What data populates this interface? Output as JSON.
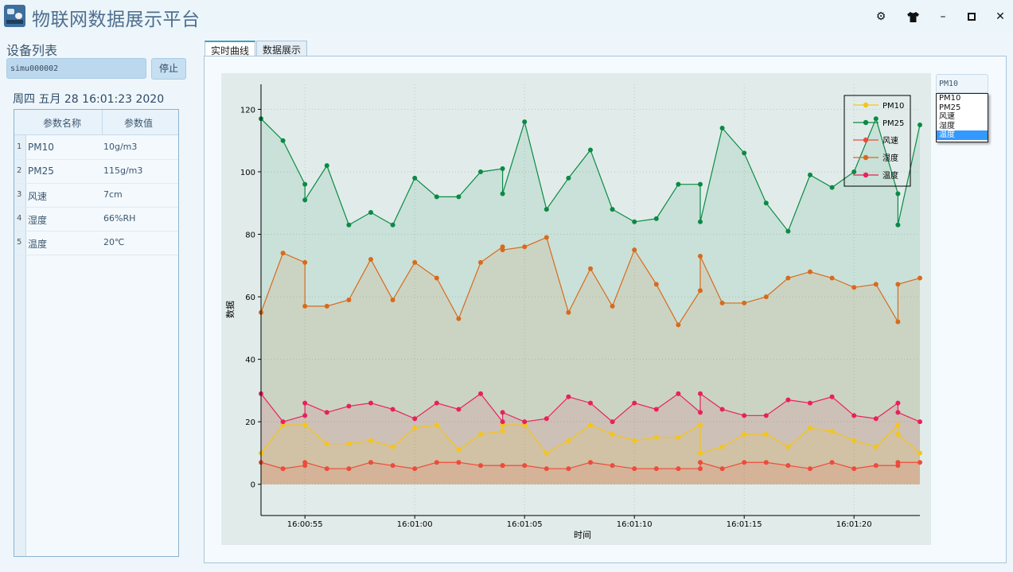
{
  "window": {
    "title": "物联网数据展示平台",
    "logo_icon": "app-logo-icon"
  },
  "titlebar_buttons": [
    {
      "icon": "gear-icon",
      "glyph": "⚙"
    },
    {
      "icon": "shirt-icon",
      "glyph": "👕"
    },
    {
      "icon": "minimize-icon",
      "glyph": "–"
    },
    {
      "icon": "maximize-icon",
      "glyph": "□"
    },
    {
      "icon": "close-icon",
      "glyph": "✕"
    }
  ],
  "sidebar": {
    "section_label": "设备列表",
    "device_id": "simu000002",
    "stop_label": "停止",
    "datetime": "周四 五月 28 16:01:23 2020",
    "table": {
      "headers": [
        "参数名称",
        "参数值"
      ],
      "rows": [
        {
          "num": "1",
          "name": "PM10",
          "value": "10g/m3"
        },
        {
          "num": "2",
          "name": "PM25",
          "value": "115g/m3"
        },
        {
          "num": "3",
          "name": "风速",
          "value": "7cm"
        },
        {
          "num": "4",
          "name": "湿度",
          "value": "66%RH"
        },
        {
          "num": "5",
          "name": "温度",
          "value": "20℃"
        }
      ]
    }
  },
  "tabs": [
    {
      "label": "实时曲线",
      "active": true
    },
    {
      "label": "数据展示",
      "active": false
    }
  ],
  "series_selector": {
    "selected": "PM10",
    "options": [
      "PM10",
      "PM25",
      "风速",
      "湿度",
      "温度"
    ],
    "highlighted": "温度"
  },
  "chart_data": {
    "type": "line",
    "title": "",
    "xlabel": "时间",
    "ylabel": "数据",
    "ylim": [
      -10,
      128
    ],
    "yticks": [
      0,
      20,
      40,
      60,
      80,
      100,
      120
    ],
    "xticks": [
      "16:00:55",
      "16:01:00",
      "16:01:05",
      "16:01:10",
      "16:01:15",
      "16:01:20"
    ],
    "xtick_seconds": [
      55,
      60,
      65,
      70,
      75,
      80
    ],
    "xlim_seconds": [
      53,
      83
    ],
    "grid": true,
    "legend_position": "top-right",
    "background": "#e1ecea",
    "series": [
      {
        "name": "PM10",
        "color": "#f5c518",
        "x": [
          53,
          54,
          55,
          55,
          56,
          57,
          58,
          59,
          60,
          61,
          62,
          63,
          64,
          64,
          65,
          66,
          67,
          68,
          69,
          70,
          71,
          72,
          73,
          73,
          74,
          75,
          76,
          77,
          78,
          79,
          80,
          81,
          82,
          82,
          83
        ],
        "y": [
          10,
          19,
          19,
          19,
          13,
          13,
          14,
          12,
          18,
          19,
          11,
          16,
          17,
          19,
          19,
          10,
          14,
          19,
          16,
          14,
          15,
          15,
          19,
          10,
          12,
          16,
          16,
          12,
          18,
          17,
          14,
          12,
          19,
          16,
          10
        ]
      },
      {
        "name": "PM25",
        "color": "#0b8a45",
        "x": [
          53,
          54,
          55,
          55,
          56,
          57,
          58,
          59,
          60,
          61,
          62,
          63,
          64,
          64,
          65,
          66,
          67,
          68,
          69,
          70,
          71,
          72,
          73,
          73,
          74,
          75,
          76,
          77,
          78,
          79,
          80,
          81,
          82,
          82,
          83
        ],
        "y": [
          117,
          110,
          96,
          91,
          102,
          83,
          87,
          83,
          98,
          92,
          92,
          100,
          101,
          93,
          116,
          88,
          98,
          107,
          88,
          84,
          85,
          96,
          96,
          84,
          114,
          106,
          90,
          81,
          99,
          95,
          100,
          117,
          93,
          83,
          115
        ]
      },
      {
        "name": "风速",
        "color": "#ef4b3a",
        "x": [
          53,
          54,
          55,
          55,
          56,
          57,
          58,
          59,
          60,
          61,
          62,
          63,
          64,
          64,
          65,
          66,
          67,
          68,
          69,
          70,
          71,
          72,
          73,
          73,
          74,
          75,
          76,
          77,
          78,
          79,
          80,
          81,
          82,
          82,
          83
        ],
        "y": [
          7,
          5,
          6,
          7,
          5,
          5,
          7,
          6,
          5,
          7,
          7,
          6,
          6,
          6,
          6,
          5,
          5,
          7,
          6,
          5,
          5,
          5,
          5,
          7,
          5,
          7,
          7,
          6,
          5,
          7,
          5,
          6,
          6,
          7,
          7
        ]
      },
      {
        "name": "湿度",
        "color": "#d96a1c",
        "x": [
          53,
          54,
          55,
          55,
          56,
          57,
          58,
          59,
          60,
          61,
          62,
          63,
          64,
          64,
          65,
          66,
          67,
          68,
          69,
          70,
          71,
          72,
          73,
          73,
          74,
          75,
          76,
          77,
          78,
          79,
          80,
          81,
          82,
          82,
          83
        ],
        "y": [
          55,
          74,
          71,
          57,
          57,
          59,
          72,
          59,
          71,
          66,
          53,
          71,
          76,
          75,
          76,
          79,
          55,
          69,
          57,
          75,
          64,
          51,
          62,
          73,
          58,
          58,
          60,
          66,
          68,
          66,
          63,
          64,
          52,
          64,
          66
        ]
      },
      {
        "name": "温度",
        "color": "#e8215c",
        "x": [
          53,
          54,
          55,
          55,
          56,
          57,
          58,
          59,
          60,
          61,
          62,
          63,
          64,
          64,
          65,
          66,
          67,
          68,
          69,
          70,
          71,
          72,
          73,
          73,
          74,
          75,
          76,
          77,
          78,
          79,
          80,
          81,
          82,
          82,
          83
        ],
        "y": [
          29,
          20,
          22,
          26,
          23,
          25,
          26,
          24,
          21,
          26,
          24,
          29,
          20,
          23,
          20,
          21,
          28,
          26,
          20,
          26,
          24,
          29,
          23,
          29,
          24,
          22,
          22,
          27,
          26,
          28,
          22,
          21,
          26,
          23,
          20
        ]
      }
    ]
  }
}
